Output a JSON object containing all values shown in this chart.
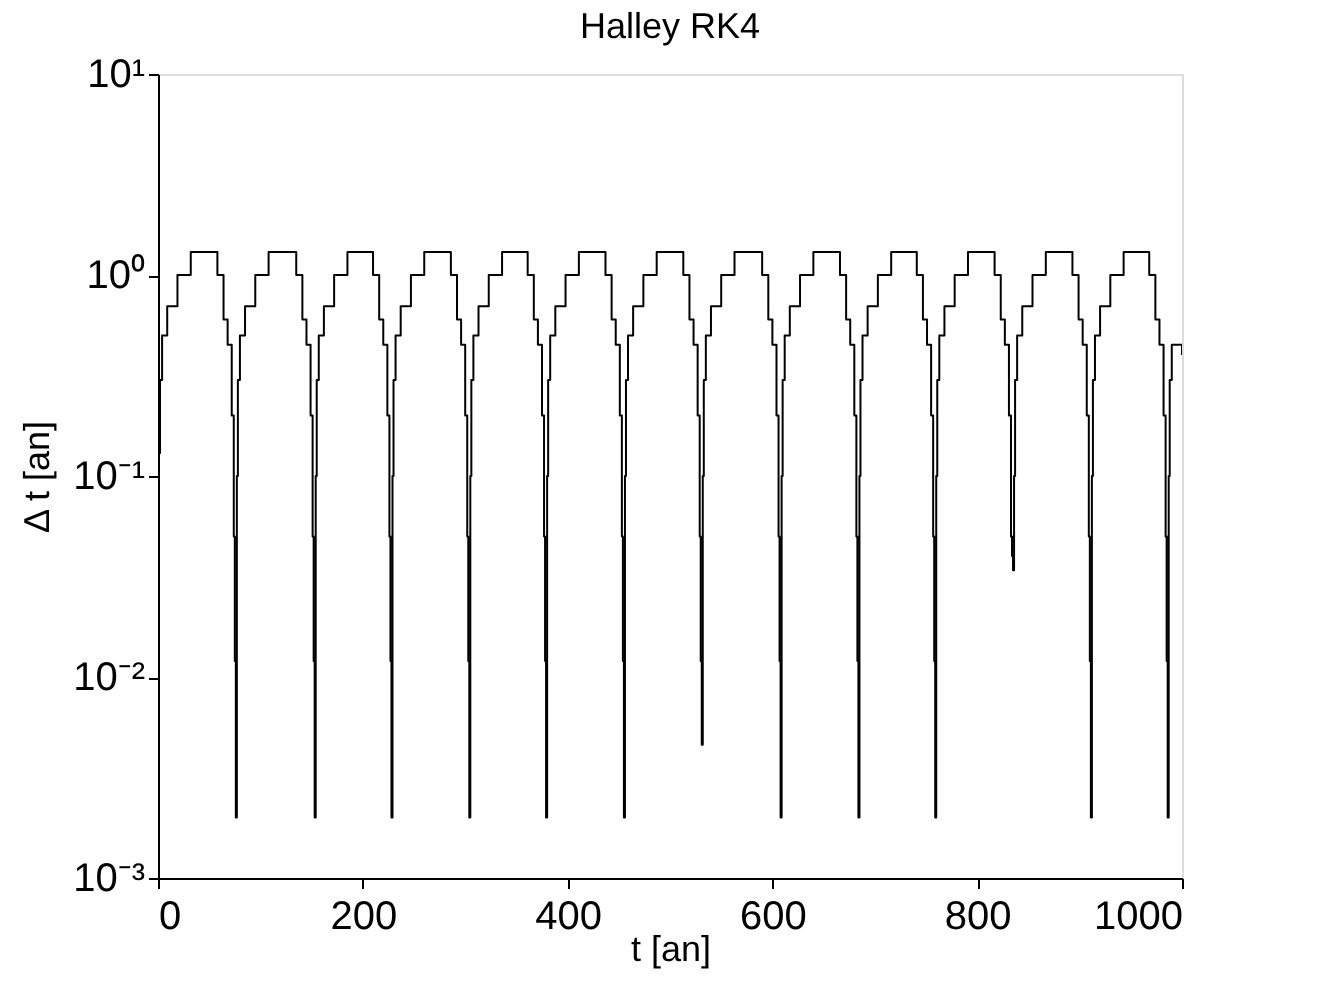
{
  "chart_data": {
    "type": "step",
    "title": "Halley RK4",
    "xlabel": "t [an]",
    "ylabel": "Δ t [an]",
    "xlim": [
      0,
      1000
    ],
    "xticks": [
      0,
      200,
      400,
      600,
      800,
      1000
    ],
    "ylim": [
      0.001,
      10
    ],
    "yticks": [
      {
        "value": 0.001,
        "label": "10⁻³"
      },
      {
        "value": 0.01,
        "label": "10⁻²"
      },
      {
        "value": 0.1,
        "label": "10⁻¹"
      },
      {
        "value": 1,
        "label": "10⁰"
      },
      {
        "value": 10,
        "label": "10¹"
      }
    ],
    "log": "y",
    "grid": false,
    "series": [
      {
        "color": "#000000",
        "x": [
          0,
          2,
          4,
          9,
          19,
          32,
          54,
          58,
          64,
          68,
          72,
          74,
          75,
          76,
          77,
          78,
          80,
          85,
          95,
          108,
          131,
          135,
          141,
          145,
          149,
          151,
          152,
          153,
          154,
          155,
          157,
          162,
          172,
          185,
          206,
          210,
          216,
          220,
          224,
          226,
          227,
          228,
          229,
          230,
          232,
          237,
          247,
          260,
          282,
          286,
          292,
          296,
          300,
          302,
          303,
          304,
          305,
          306,
          308,
          313,
          323,
          336,
          357,
          361,
          367,
          371,
          375,
          377,
          378,
          379,
          380,
          381,
          383,
          388,
          398,
          411,
          433,
          437,
          443,
          447,
          451,
          453,
          454,
          455,
          456,
          457,
          459,
          464,
          474,
          487,
          509,
          513,
          519,
          523,
          527,
          529,
          530,
          531,
          532,
          533,
          535,
          540,
          550,
          563,
          586,
          590,
          596,
          600,
          604,
          606,
          607,
          608,
          609,
          610,
          612,
          617,
          627,
          640,
          662,
          666,
          672,
          676,
          680,
          682,
          683,
          684,
          685,
          686,
          688,
          693,
          703,
          716,
          737,
          741,
          747,
          751,
          755,
          757,
          758,
          759,
          760,
          761,
          763,
          768,
          778,
          791,
          813,
          817,
          823,
          827,
          831,
          833,
          834,
          835,
          836,
          837,
          839,
          844,
          854,
          867,
          889,
          893,
          899,
          903,
          907,
          909,
          910,
          911,
          912,
          913,
          915,
          920,
          930,
          943,
          964,
          968,
          974,
          978,
          982,
          984,
          985,
          986,
          987,
          988,
          990,
          1000
        ],
        "values": [
          0.13,
          0.3,
          0.5,
          0.7,
          1.0,
          1.3,
          1.3,
          1.0,
          0.6,
          0.45,
          0.2,
          0.05,
          0.012,
          0.002,
          0.1,
          0.3,
          0.5,
          0.7,
          1.0,
          1.3,
          1.3,
          1.0,
          0.6,
          0.45,
          0.2,
          0.05,
          0.012,
          0.002,
          0.1,
          0.3,
          0.5,
          0.7,
          1.0,
          1.3,
          1.3,
          1.0,
          0.6,
          0.45,
          0.2,
          0.05,
          0.012,
          0.002,
          0.1,
          0.3,
          0.5,
          0.7,
          1.0,
          1.3,
          1.3,
          1.0,
          0.6,
          0.45,
          0.2,
          0.05,
          0.012,
          0.002,
          0.1,
          0.3,
          0.5,
          0.7,
          1.0,
          1.3,
          1.3,
          1.0,
          0.6,
          0.45,
          0.2,
          0.05,
          0.012,
          0.002,
          0.1,
          0.3,
          0.5,
          0.7,
          1.0,
          1.3,
          1.3,
          1.0,
          0.6,
          0.45,
          0.2,
          0.05,
          0.012,
          0.002,
          0.1,
          0.3,
          0.5,
          0.7,
          1.0,
          1.3,
          1.3,
          1.0,
          0.6,
          0.45,
          0.2,
          0.05,
          0.012,
          0.0046,
          0.1,
          0.3,
          0.5,
          0.7,
          1.0,
          1.3,
          1.3,
          1.0,
          0.6,
          0.45,
          0.2,
          0.05,
          0.012,
          0.002,
          0.1,
          0.3,
          0.5,
          0.7,
          1.0,
          1.3,
          1.3,
          1.0,
          0.6,
          0.45,
          0.2,
          0.05,
          0.012,
          0.002,
          0.1,
          0.3,
          0.5,
          0.7,
          1.0,
          1.3,
          1.3,
          1.0,
          0.6,
          0.45,
          0.2,
          0.05,
          0.012,
          0.002,
          0.1,
          0.3,
          0.5,
          0.7,
          1.0,
          1.3,
          1.3,
          1.0,
          0.6,
          0.45,
          0.2,
          0.05,
          0.04,
          0.034,
          0.1,
          0.3,
          0.5,
          0.7,
          1.0,
          1.3,
          1.3,
          1.0,
          0.6,
          0.45,
          0.2,
          0.05,
          0.012,
          0.002,
          0.1,
          0.3,
          0.5,
          0.7,
          1.0,
          1.3,
          1.3,
          1.0,
          0.6,
          0.45,
          0.2,
          0.05,
          0.012,
          0.002,
          0.1,
          0.3,
          0.45,
          0.4
        ]
      }
    ]
  }
}
